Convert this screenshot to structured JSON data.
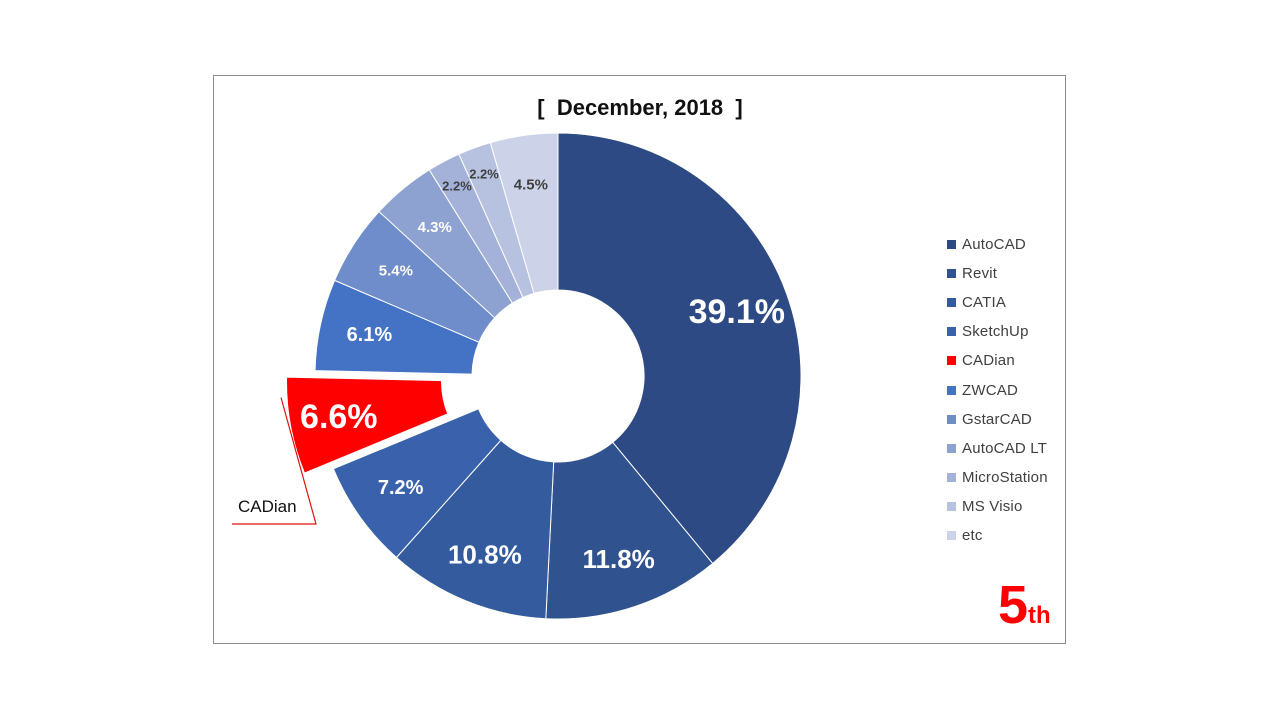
{
  "chart_data": {
    "type": "pie",
    "title": "[  December, 2018  ]",
    "categories": [
      "AutoCAD",
      "Revit",
      "CATIA",
      "SketchUp",
      "CADian",
      "ZWCAD",
      "GstarCAD",
      "AutoCAD LT",
      "MicroStation",
      "MS Visio",
      "etc"
    ],
    "values": [
      39.1,
      11.8,
      10.8,
      7.2,
      6.6,
      6.1,
      5.4,
      4.3,
      2.2,
      2.2,
      4.5
    ],
    "labels": [
      "39.1%",
      "11.8%",
      "10.8%",
      "7.2%",
      "6.6%",
      "6.1%",
      "5.4%",
      "4.3%",
      "2.2%",
      "2.2%",
      "4.5%"
    ],
    "colors": [
      "#2d4a85",
      "#30528f",
      "#335b9e",
      "#3961ac",
      "#ff0000",
      "#4472c4",
      "#6f8ccb",
      "#8ea2d2",
      "#a4b2da",
      "#b7c2e1",
      "#ccd3e9"
    ],
    "highlight": "CADian",
    "legend_position": "right"
  },
  "callout": {
    "label": "CADian"
  },
  "rank": {
    "number": "5",
    "suffix": "th"
  }
}
